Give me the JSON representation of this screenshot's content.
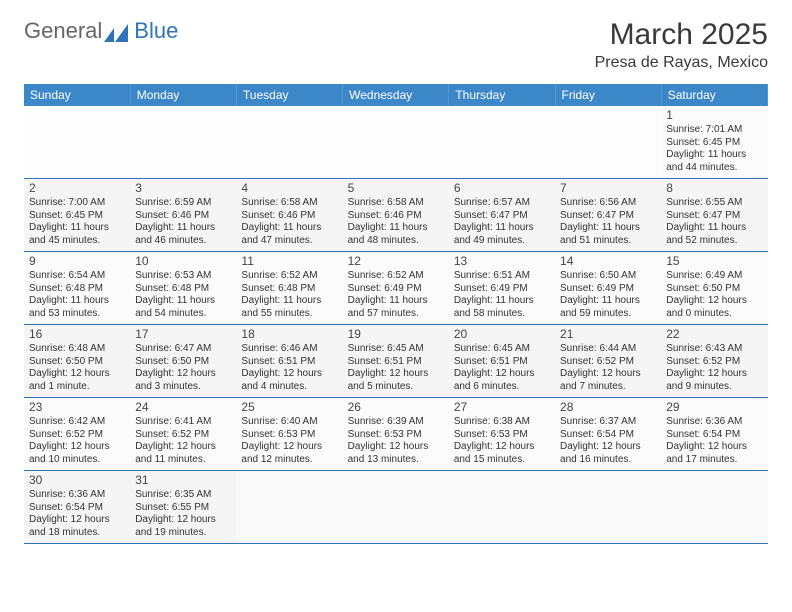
{
  "logo": {
    "part1": "General",
    "part2": "Blue"
  },
  "title": "March 2025",
  "location": "Presa de Rayas, Mexico",
  "header_bg": "#3c87c8",
  "header_fg": "#ffffff",
  "border_color": "#2d74b8",
  "page_bg": "#ffffff",
  "alt_row_bg": "#f5f5f5",
  "text_color": "#333333",
  "title_fontsize": 30,
  "location_fontsize": 16,
  "cell_fontsize": 10,
  "dayhead_fontsize": 12,
  "day_headers": [
    "Sunday",
    "Monday",
    "Tuesday",
    "Wednesday",
    "Thursday",
    "Friday",
    "Saturday"
  ],
  "weeks": [
    [
      null,
      null,
      null,
      null,
      null,
      null,
      {
        "n": "1",
        "sr": "Sunrise: 7:01 AM",
        "ss": "Sunset: 6:45 PM",
        "dl": "Daylight: 11 hours and 44 minutes."
      }
    ],
    [
      {
        "n": "2",
        "sr": "Sunrise: 7:00 AM",
        "ss": "Sunset: 6:45 PM",
        "dl": "Daylight: 11 hours and 45 minutes."
      },
      {
        "n": "3",
        "sr": "Sunrise: 6:59 AM",
        "ss": "Sunset: 6:46 PM",
        "dl": "Daylight: 11 hours and 46 minutes."
      },
      {
        "n": "4",
        "sr": "Sunrise: 6:58 AM",
        "ss": "Sunset: 6:46 PM",
        "dl": "Daylight: 11 hours and 47 minutes."
      },
      {
        "n": "5",
        "sr": "Sunrise: 6:58 AM",
        "ss": "Sunset: 6:46 PM",
        "dl": "Daylight: 11 hours and 48 minutes."
      },
      {
        "n": "6",
        "sr": "Sunrise: 6:57 AM",
        "ss": "Sunset: 6:47 PM",
        "dl": "Daylight: 11 hours and 49 minutes."
      },
      {
        "n": "7",
        "sr": "Sunrise: 6:56 AM",
        "ss": "Sunset: 6:47 PM",
        "dl": "Daylight: 11 hours and 51 minutes."
      },
      {
        "n": "8",
        "sr": "Sunrise: 6:55 AM",
        "ss": "Sunset: 6:47 PM",
        "dl": "Daylight: 11 hours and 52 minutes."
      }
    ],
    [
      {
        "n": "9",
        "sr": "Sunrise: 6:54 AM",
        "ss": "Sunset: 6:48 PM",
        "dl": "Daylight: 11 hours and 53 minutes."
      },
      {
        "n": "10",
        "sr": "Sunrise: 6:53 AM",
        "ss": "Sunset: 6:48 PM",
        "dl": "Daylight: 11 hours and 54 minutes."
      },
      {
        "n": "11",
        "sr": "Sunrise: 6:52 AM",
        "ss": "Sunset: 6:48 PM",
        "dl": "Daylight: 11 hours and 55 minutes."
      },
      {
        "n": "12",
        "sr": "Sunrise: 6:52 AM",
        "ss": "Sunset: 6:49 PM",
        "dl": "Daylight: 11 hours and 57 minutes."
      },
      {
        "n": "13",
        "sr": "Sunrise: 6:51 AM",
        "ss": "Sunset: 6:49 PM",
        "dl": "Daylight: 11 hours and 58 minutes."
      },
      {
        "n": "14",
        "sr": "Sunrise: 6:50 AM",
        "ss": "Sunset: 6:49 PM",
        "dl": "Daylight: 11 hours and 59 minutes."
      },
      {
        "n": "15",
        "sr": "Sunrise: 6:49 AM",
        "ss": "Sunset: 6:50 PM",
        "dl": "Daylight: 12 hours and 0 minutes."
      }
    ],
    [
      {
        "n": "16",
        "sr": "Sunrise: 6:48 AM",
        "ss": "Sunset: 6:50 PM",
        "dl": "Daylight: 12 hours and 1 minute."
      },
      {
        "n": "17",
        "sr": "Sunrise: 6:47 AM",
        "ss": "Sunset: 6:50 PM",
        "dl": "Daylight: 12 hours and 3 minutes."
      },
      {
        "n": "18",
        "sr": "Sunrise: 6:46 AM",
        "ss": "Sunset: 6:51 PM",
        "dl": "Daylight: 12 hours and 4 minutes."
      },
      {
        "n": "19",
        "sr": "Sunrise: 6:45 AM",
        "ss": "Sunset: 6:51 PM",
        "dl": "Daylight: 12 hours and 5 minutes."
      },
      {
        "n": "20",
        "sr": "Sunrise: 6:45 AM",
        "ss": "Sunset: 6:51 PM",
        "dl": "Daylight: 12 hours and 6 minutes."
      },
      {
        "n": "21",
        "sr": "Sunrise: 6:44 AM",
        "ss": "Sunset: 6:52 PM",
        "dl": "Daylight: 12 hours and 7 minutes."
      },
      {
        "n": "22",
        "sr": "Sunrise: 6:43 AM",
        "ss": "Sunset: 6:52 PM",
        "dl": "Daylight: 12 hours and 9 minutes."
      }
    ],
    [
      {
        "n": "23",
        "sr": "Sunrise: 6:42 AM",
        "ss": "Sunset: 6:52 PM",
        "dl": "Daylight: 12 hours and 10 minutes."
      },
      {
        "n": "24",
        "sr": "Sunrise: 6:41 AM",
        "ss": "Sunset: 6:52 PM",
        "dl": "Daylight: 12 hours and 11 minutes."
      },
      {
        "n": "25",
        "sr": "Sunrise: 6:40 AM",
        "ss": "Sunset: 6:53 PM",
        "dl": "Daylight: 12 hours and 12 minutes."
      },
      {
        "n": "26",
        "sr": "Sunrise: 6:39 AM",
        "ss": "Sunset: 6:53 PM",
        "dl": "Daylight: 12 hours and 13 minutes."
      },
      {
        "n": "27",
        "sr": "Sunrise: 6:38 AM",
        "ss": "Sunset: 6:53 PM",
        "dl": "Daylight: 12 hours and 15 minutes."
      },
      {
        "n": "28",
        "sr": "Sunrise: 6:37 AM",
        "ss": "Sunset: 6:54 PM",
        "dl": "Daylight: 12 hours and 16 minutes."
      },
      {
        "n": "29",
        "sr": "Sunrise: 6:36 AM",
        "ss": "Sunset: 6:54 PM",
        "dl": "Daylight: 12 hours and 17 minutes."
      }
    ],
    [
      {
        "n": "30",
        "sr": "Sunrise: 6:36 AM",
        "ss": "Sunset: 6:54 PM",
        "dl": "Daylight: 12 hours and 18 minutes."
      },
      {
        "n": "31",
        "sr": "Sunrise: 6:35 AM",
        "ss": "Sunset: 6:55 PM",
        "dl": "Daylight: 12 hours and 19 minutes."
      },
      null,
      null,
      null,
      null,
      null
    ]
  ]
}
